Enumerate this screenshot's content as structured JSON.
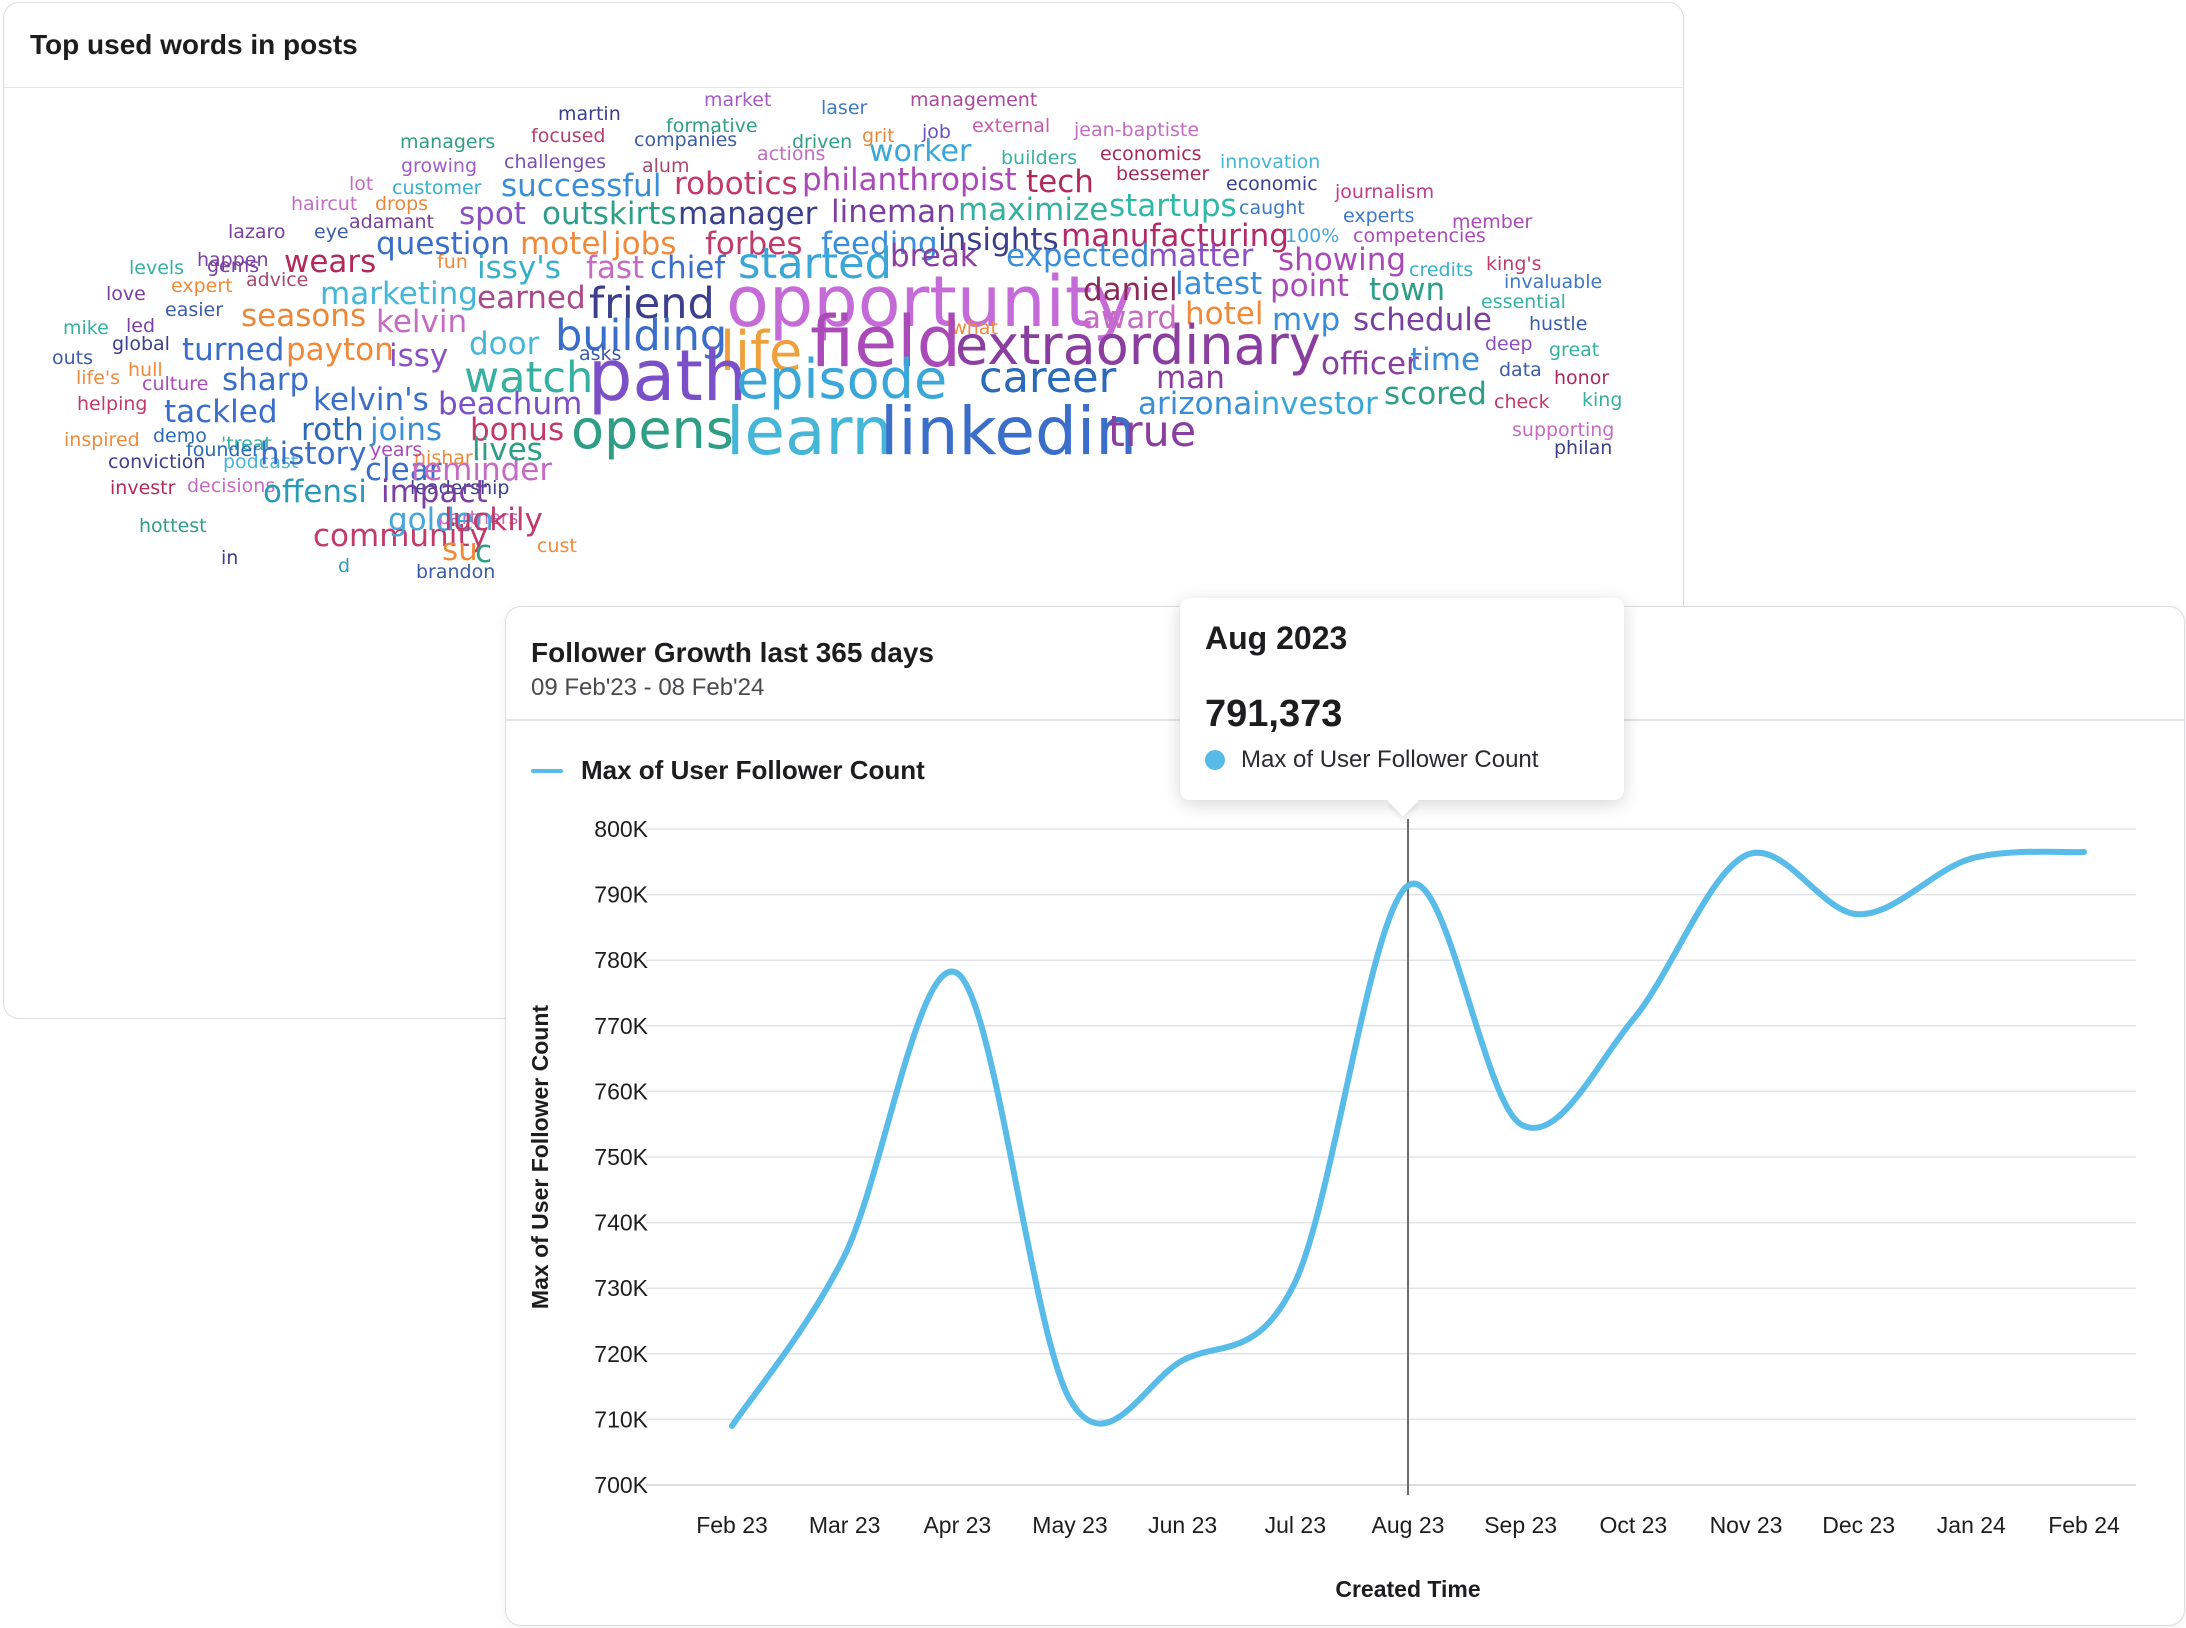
{
  "word_cloud": {
    "title": "Top used words in posts",
    "words": [
      {
        "text": "market",
        "color": "#a05cc8"
      },
      {
        "text": "laser",
        "color": "#3e78c8"
      },
      {
        "text": "management",
        "color": "#a94a9a"
      },
      {
        "text": "martin",
        "color": "#3b3f8c"
      },
      {
        "text": "formative",
        "color": "#2e9e86"
      },
      {
        "text": "focused",
        "color": "#b2406a"
      },
      {
        "text": "companies",
        "color": "#3b5ca8"
      },
      {
        "text": "driven",
        "color": "#2e9e86"
      },
      {
        "text": "grit",
        "color": "#e8883a"
      },
      {
        "text": "job",
        "color": "#6b4fc2"
      },
      {
        "text": "external",
        "color": "#c85ca8"
      },
      {
        "text": "jean-baptiste",
        "color": "#c56bc2"
      },
      {
        "text": "managers",
        "color": "#2e9e86"
      },
      {
        "text": "growing",
        "color": "#a05cc8"
      },
      {
        "text": "challenges",
        "color": "#7a4fb0"
      },
      {
        "text": "alum",
        "color": "#a94a6a"
      },
      {
        "text": "actions",
        "color": "#c56bc2"
      },
      {
        "text": "worker",
        "color": "#3aa7d8"
      },
      {
        "text": "builders",
        "color": "#36b0a0"
      },
      {
        "text": "economics",
        "color": "#a92a5a"
      },
      {
        "text": "innovation",
        "color": "#46b6d8"
      },
      {
        "text": "lot",
        "color": "#c56bc2"
      },
      {
        "text": "customer",
        "color": "#36b0c8"
      },
      {
        "text": "successful",
        "color": "#3a8ed8"
      },
      {
        "text": "robotics",
        "color": "#c23a6a"
      },
      {
        "text": "philanthropist",
        "color": "#a94ab8"
      },
      {
        "text": "tech",
        "color": "#b22a5a"
      },
      {
        "text": "bessemer",
        "color": "#a92a5a"
      },
      {
        "text": "economic",
        "color": "#3b3f8c"
      },
      {
        "text": "journalism",
        "color": "#c23a8a"
      },
      {
        "text": "haircut",
        "color": "#c56bc2"
      },
      {
        "text": "drops",
        "color": "#e8883a"
      },
      {
        "text": "spot",
        "color": "#8a4fc2"
      },
      {
        "text": "outskirts",
        "color": "#2e9e86"
      },
      {
        "text": "manager",
        "color": "#3b3f8c"
      },
      {
        "text": "lineman",
        "color": "#7a3fa0"
      },
      {
        "text": "maximize",
        "color": "#36b0a0"
      },
      {
        "text": "startups",
        "color": "#2eb8a8"
      },
      {
        "text": "caught",
        "color": "#3e78c8"
      },
      {
        "text": "experts",
        "color": "#3e78c8"
      },
      {
        "text": "member",
        "color": "#a94ab8"
      },
      {
        "text": "lazaro",
        "color": "#7a3fa0"
      },
      {
        "text": "eye",
        "color": "#3b5ca8"
      },
      {
        "text": "adamant",
        "color": "#7a3fa0"
      },
      {
        "text": "question",
        "color": "#3a6ec8"
      },
      {
        "text": "motel",
        "color": "#f08a3a"
      },
      {
        "text": "jobs",
        "color": "#f08a3a"
      },
      {
        "text": "forbes",
        "color": "#c23a6a"
      },
      {
        "text": "feeding",
        "color": "#3a8ed8"
      },
      {
        "text": "insights",
        "color": "#3b3f8c"
      },
      {
        "text": "manufacturing",
        "color": "#b22a6a"
      },
      {
        "text": "100%",
        "color": "#46a6d8"
      },
      {
        "text": "competencies",
        "color": "#a94ab8"
      },
      {
        "text": "happen",
        "color": "#7a3fa0"
      },
      {
        "text": "levels",
        "color": "#36b0a0"
      },
      {
        "text": "gems",
        "color": "#7a3fa0"
      },
      {
        "text": "wears",
        "color": "#b22a5a"
      },
      {
        "text": "fun",
        "color": "#f08a3a"
      },
      {
        "text": "issy's",
        "color": "#36b0c8"
      },
      {
        "text": "fast",
        "color": "#c56bc2"
      },
      {
        "text": "chief",
        "color": "#3a6ec8"
      },
      {
        "text": "started",
        "color": "#3aa7d8"
      },
      {
        "text": "break",
        "color": "#8a3fa0"
      },
      {
        "text": "expected",
        "color": "#3a8ed8"
      },
      {
        "text": "matter",
        "color": "#8a4fc2"
      },
      {
        "text": "showing",
        "color": "#a94ab8"
      },
      {
        "text": "credits",
        "color": "#36b0c8"
      },
      {
        "text": "king's",
        "color": "#c23a6a"
      },
      {
        "text": "expert",
        "color": "#f08a3a"
      },
      {
        "text": "advice",
        "color": "#a94a6a"
      },
      {
        "text": "love",
        "color": "#7a3fa0"
      },
      {
        "text": "marketing",
        "color": "#46b6d8"
      },
      {
        "text": "opportunity",
        "color": "#c56bd8"
      },
      {
        "text": "daniel",
        "color": "#8a2a5a"
      },
      {
        "text": "latest",
        "color": "#3a8ed8"
      },
      {
        "text": "point",
        "color": "#a94ab8"
      },
      {
        "text": "town",
        "color": "#2e9e86"
      },
      {
        "text": "invaluable",
        "color": "#3e78c8"
      },
      {
        "text": "essential",
        "color": "#36b0a0"
      },
      {
        "text": "easier",
        "color": "#3b5ca8"
      },
      {
        "text": "seasons",
        "color": "#e8883a"
      },
      {
        "text": "earned",
        "color": "#a94a8a"
      },
      {
        "text": "friend",
        "color": "#3b3f8c"
      },
      {
        "text": "mike",
        "color": "#36b0a0"
      },
      {
        "text": "led",
        "color": "#7a3fa0"
      },
      {
        "text": "kelvin",
        "color": "#c56bc2"
      },
      {
        "text": "'what",
        "color": "#f08a3a"
      },
      {
        "text": "award",
        "color": "#c56bc2"
      },
      {
        "text": "hotel",
        "color": "#f08a3a"
      },
      {
        "text": "mvp",
        "color": "#3a8ed8"
      },
      {
        "text": "schedule",
        "color": "#7a3fa0"
      },
      {
        "text": "hustle",
        "color": "#3b5ca8"
      },
      {
        "text": "global",
        "color": "#3b3f8c"
      },
      {
        "text": "turned",
        "color": "#3a6ec8"
      },
      {
        "text": "payton",
        "color": "#f08a3a"
      },
      {
        "text": "door",
        "color": "#46b6d8"
      },
      {
        "text": "building",
        "color": "#3a6ec8"
      },
      {
        "text": "life",
        "color": "#f0a03a"
      },
      {
        "text": "field",
        "color": "#a94ab8"
      },
      {
        "text": "extraordinary",
        "color": "#8a3fa0"
      },
      {
        "text": "deep",
        "color": "#8a4fc2"
      },
      {
        "text": "great",
        "color": "#36b0a0"
      },
      {
        "text": "outs",
        "color": "#3b5ca8"
      },
      {
        "text": "hull",
        "color": "#f08a3a"
      },
      {
        "text": "issy",
        "color": "#8a4fc2"
      },
      {
        "text": "asks",
        "color": "#3b5ca8"
      },
      {
        "text": "data",
        "color": "#3b5ca8"
      },
      {
        "text": "honor",
        "color": "#a92a5a"
      },
      {
        "text": "life's",
        "color": "#f08a3a"
      },
      {
        "text": "culture",
        "color": "#a94ab8"
      },
      {
        "text": "sharp",
        "color": "#3a6ec8"
      },
      {
        "text": "watch",
        "color": "#36b0a0"
      },
      {
        "text": "path",
        "color": "#7a4fc8"
      },
      {
        "text": "episode",
        "color": "#3aa7d8"
      },
      {
        "text": "career",
        "color": "#2a6ab8"
      },
      {
        "text": "man",
        "color": "#8a3fa0"
      },
      {
        "text": "officer",
        "color": "#8a3fa0"
      },
      {
        "text": "time",
        "color": "#3a8ed8"
      },
      {
        "text": "helping",
        "color": "#c23a6a"
      },
      {
        "text": "tackled",
        "color": "#3a6ec8"
      },
      {
        "text": "kelvin's",
        "color": "#3a6ec8"
      },
      {
        "text": "beachum",
        "color": "#7a4fc8"
      },
      {
        "text": "arizona",
        "color": "#3a8ed8"
      },
      {
        "text": "investor",
        "color": "#3aa7d8"
      },
      {
        "text": "scored",
        "color": "#2e9e86"
      },
      {
        "text": "check",
        "color": "#c23a6a"
      },
      {
        "text": "king",
        "color": "#36b0a0"
      },
      {
        "text": "inspired",
        "color": "#f08a3a"
      },
      {
        "text": "demo",
        "color": "#2a6ab8"
      },
      {
        "text": "'treat",
        "color": "#36b0a0"
      },
      {
        "text": "roth",
        "color": "#2a6ab8"
      },
      {
        "text": "joins",
        "color": "#3a8ed8"
      },
      {
        "text": "bonus",
        "color": "#c23a6a"
      },
      {
        "text": "opens",
        "color": "#2e9e86"
      },
      {
        "text": "learn",
        "color": "#46b6d8"
      },
      {
        "text": "linkedin",
        "color": "#3a6ec8"
      },
      {
        "text": "true",
        "color": "#8a3fa0"
      },
      {
        "text": "conviction",
        "color": "#3b3f8c"
      },
      {
        "text": "podcast",
        "color": "#46b6d8"
      },
      {
        "text": "founder",
        "color": "#2a6ab8"
      },
      {
        "text": "history",
        "color": "#3a6ec8"
      },
      {
        "text": "clear",
        "color": "#3a6ec8"
      },
      {
        "text": "reminder",
        "color": "#c56bc2"
      },
      {
        "text": "lives",
        "color": "#2e9e86"
      },
      {
        "text": "nishar",
        "color": "#f08a3a"
      },
      {
        "text": "supporting",
        "color": "#c56bc2"
      },
      {
        "text": "investr",
        "color": "#b22a5a"
      },
      {
        "text": "leadership",
        "color": "#3b3f8c"
      },
      {
        "text": "decisions",
        "color": "#c56bc2"
      },
      {
        "text": "offensi",
        "color": "#2a9ab8"
      },
      {
        "text": "impact",
        "color": "#7a3fa0"
      },
      {
        "text": "years",
        "color": "#a94ab8"
      },
      {
        "text": "philan",
        "color": "#3b3f8c"
      },
      {
        "text": "hottest",
        "color": "#2e9e86"
      },
      {
        "text": "partners",
        "color": "#c56bc2"
      },
      {
        "text": "community",
        "color": "#c23a6a"
      },
      {
        "text": "golden",
        "color": "#46a6d8"
      },
      {
        "text": "luckily",
        "color": "#c23a6a"
      },
      {
        "text": "su",
        "color": "#f08a3a"
      },
      {
        "text": "cust",
        "color": "#f08a3a"
      },
      {
        "text": "in",
        "color": "#3b3f8c"
      },
      {
        "text": "d",
        "color": "#2a9ab8"
      },
      {
        "text": "c",
        "color": "#2e9e86"
      },
      {
        "text": "brandon",
        "color": "#3b5ca8"
      }
    ]
  },
  "follower_growth": {
    "title": "Follower Growth last 365 days",
    "subtitle": "09 Feb'23 - 08 Feb'24",
    "legend_label": "Max of User Follower Count",
    "accent_color": "#59bbe8",
    "tooltip": {
      "date": "Aug 2023",
      "value": "791,373",
      "series_label": "Max of User Follower Count"
    }
  },
  "chart_data": {
    "type": "line",
    "title": "Follower Growth last 365 days",
    "subtitle": "09 Feb'23 - 08 Feb'24",
    "xlabel": "Created Time",
    "ylabel": "Max of User Follower Count",
    "categories": [
      "Feb 23",
      "Mar 23",
      "Apr 23",
      "May 23",
      "Jun 23",
      "Jul 23",
      "Aug 23",
      "Sep 23",
      "Oct 23",
      "Nov 23",
      "Dec 23",
      "Jan 24",
      "Feb 24"
    ],
    "series": [
      {
        "name": "Max of User Follower Count",
        "values": [
          709000,
          735000,
          778000,
          713000,
          719000,
          731000,
          791373,
          755000,
          771000,
          796000,
          787000,
          795500,
          796500
        ]
      }
    ],
    "ylim": [
      700000,
      800000
    ],
    "yticks": [
      700000,
      710000,
      720000,
      730000,
      740000,
      750000,
      760000,
      770000,
      780000,
      790000,
      800000
    ],
    "ytick_labels": [
      "700K",
      "710K",
      "720K",
      "730K",
      "740K",
      "750K",
      "760K",
      "770K",
      "780K",
      "790K",
      "800K"
    ],
    "highlight_category": "Aug 23",
    "grid": true,
    "legend": "top-left"
  }
}
